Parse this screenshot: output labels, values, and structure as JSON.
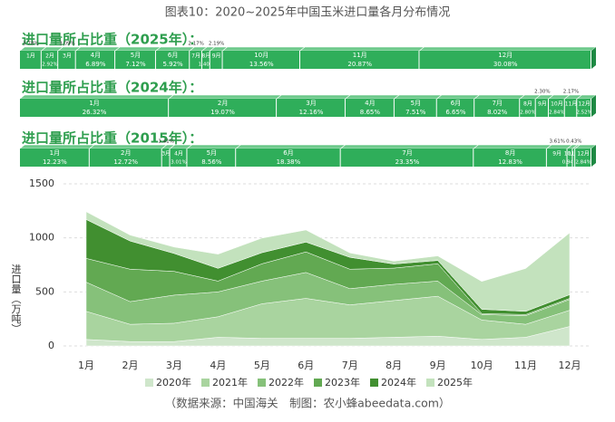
{
  "title": "图表10：2020~2025年中国玉米进口量各月分布情况",
  "source": "（数据来源：中国海关　制图：农小蜂abeedata.com）",
  "chart_data": [
    {
      "type": "share",
      "title": "进口量所占比重（2025年）：",
      "categories": [
        "1月",
        "2月",
        "3月",
        "4月",
        "5月",
        "6月",
        "7月",
        "8月",
        "9月",
        "10月",
        "11月",
        "12月"
      ],
      "values": [
        3.78,
        2.92,
        3.09,
        6.89,
        7.12,
        5.92,
        2.17,
        1.4,
        2.19,
        13.56,
        20.87,
        30.08
      ],
      "value_labels": [
        "3.78%",
        "2.92%",
        "3.09%",
        "6.89%",
        "7.12%",
        "5.92%",
        "2.17%",
        "1.40%",
        "2.19%",
        "13.56%",
        "20.87%",
        "30.08%"
      ],
      "color": "#2fae5a"
    },
    {
      "type": "share",
      "title": "进口量所占比重（2024年）：",
      "categories": [
        "1月",
        "2月",
        "3月",
        "4月",
        "5月",
        "6月",
        "7月",
        "8月",
        "9月",
        "10月",
        "11月",
        "12月"
      ],
      "values": [
        26.32,
        19.07,
        12.16,
        8.65,
        7.51,
        6.65,
        8.02,
        2.8,
        2.3,
        2.84,
        2.17,
        2.52
      ],
      "value_labels": [
        "26.32%",
        "19.07%",
        "12.16%",
        "8.65%",
        "7.51%",
        "6.65%",
        "8.02%",
        "2.80%",
        "2.30%",
        "2.84%",
        "2.17%",
        "2.52%"
      ],
      "color": "#2fae5a"
    },
    {
      "type": "share",
      "title": "进口量所占比重（2015年）：",
      "categories": [
        "1月",
        "2月",
        "3月",
        "4月",
        "5月",
        "6月",
        "7月",
        "8月",
        "9月",
        "10月",
        "11月",
        "12月"
      ],
      "values": [
        12.23,
        12.72,
        1.41,
        3.01,
        8.56,
        18.38,
        23.35,
        12.83,
        3.61,
        0.94,
        0.43,
        2.84
      ],
      "value_labels": [
        "12.23%",
        "12.72%",
        "1.41%",
        "3.01%",
        "8.56%",
        "18.38%",
        "23.35%",
        "12.83%",
        "3.61%",
        "0.94%",
        "0.43%",
        "2.84%"
      ],
      "color": "#2fae5a"
    },
    {
      "type": "area",
      "y_label": "进口量（万吨）",
      "categories": [
        "1月",
        "2月",
        "3月",
        "4月",
        "5月",
        "6月",
        "7月",
        "8月",
        "9月",
        "10月",
        "11月",
        "12月"
      ],
      "series": [
        {
          "name": "2020年",
          "color": "#cfe6cb",
          "values": [
            60,
            40,
            40,
            80,
            70,
            70,
            70,
            80,
            90,
            60,
            80,
            180
          ]
        },
        {
          "name": "2021年",
          "color": "#a9d49f",
          "values": [
            260,
            160,
            170,
            190,
            320,
            370,
            310,
            340,
            370,
            180,
            120,
            150
          ]
        },
        {
          "name": "2022年",
          "color": "#86c17a",
          "values": [
            270,
            210,
            260,
            230,
            210,
            240,
            150,
            150,
            140,
            50,
            80,
            100
          ]
        },
        {
          "name": "2023年",
          "color": "#62a952",
          "values": [
            220,
            300,
            220,
            100,
            160,
            190,
            180,
            150,
            160,
            10,
            10,
            10
          ]
        },
        {
          "name": "2024年",
          "color": "#418f30",
          "values": [
            360,
            261,
            166,
            118,
            103,
            91,
            110,
            38,
            31,
            39,
            30,
            34
          ]
        },
        {
          "name": "2025年",
          "color": "#c3e2bd",
          "values": [
            72,
            55,
            59,
            131,
            135,
            112,
            41,
            27,
            42,
            258,
            397,
            572
          ]
        }
      ],
      "ylim": [
        0,
        1500
      ],
      "yticks": [
        0,
        500,
        1000,
        1500
      ],
      "grid": true
    }
  ]
}
